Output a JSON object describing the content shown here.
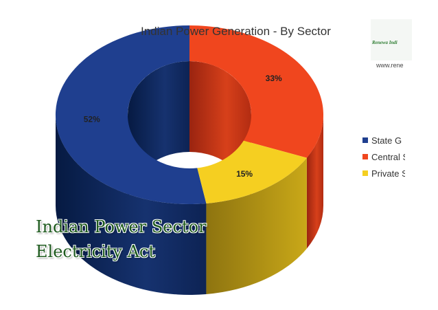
{
  "chart_data": {
    "type": "pie",
    "title": "Indian Power Generation - By Sector",
    "categories": [
      "State G",
      "Central S",
      "Private S"
    ],
    "values": [
      52,
      33,
      15
    ],
    "labels": [
      "52%",
      "33%",
      "15%"
    ],
    "colors": [
      "#1f3f8f",
      "#f0461e",
      "#f5cf21"
    ],
    "legend_position": "right"
  },
  "logo": {
    "brand_text": "Renewa Indi",
    "url_text": "www.rene"
  },
  "overlay": {
    "line1": "Indian Power Sector",
    "line2": "Electricity Act"
  }
}
